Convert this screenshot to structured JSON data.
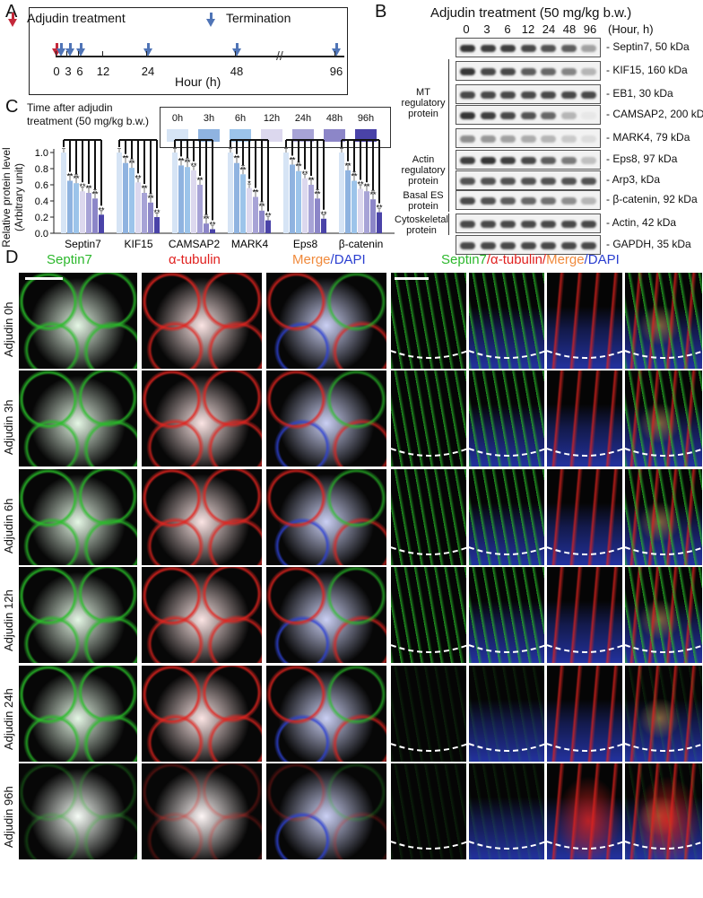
{
  "panel_labels": {
    "a": "A",
    "b": "B",
    "c": "C",
    "d": "D"
  },
  "panel_a": {
    "legend_treatment": "Adjudin treatment",
    "legend_termination": "Termination",
    "axis_label": "Hour (h)",
    "ticks": [
      "0",
      "3",
      "6",
      "12",
      "24",
      "48",
      "96"
    ],
    "treatment_color": "#c4283a",
    "termination_color": "#4f74b6"
  },
  "panel_b": {
    "title": "Adjudin treatment (50 mg/kg b.w.)",
    "lanes": [
      "0",
      "3",
      "6",
      "12",
      "24",
      "48",
      "96"
    ],
    "lane_unit": "(Hour, h)",
    "blots": [
      {
        "label": "Septin7, 50 kDa",
        "levels": [
          0.95,
          0.9,
          0.9,
          0.85,
          0.8,
          0.75,
          0.4
        ]
      },
      {
        "label": "KIF15, 160 kDa",
        "levels": [
          0.95,
          0.85,
          0.85,
          0.75,
          0.7,
          0.55,
          0.3
        ]
      },
      {
        "label": "EB1, 30 kDa",
        "levels": [
          0.85,
          0.85,
          0.85,
          0.85,
          0.85,
          0.85,
          0.85
        ]
      },
      {
        "label": "CAMSAP2, 200 kDa",
        "levels": [
          0.95,
          0.9,
          0.85,
          0.8,
          0.7,
          0.3,
          0.05
        ]
      },
      {
        "label": "MARK4, 79 kDa",
        "levels": [
          0.5,
          0.45,
          0.4,
          0.35,
          0.3,
          0.2,
          0.1
        ]
      },
      {
        "label": "Eps8, 97 kDa",
        "levels": [
          0.9,
          0.95,
          0.9,
          0.85,
          0.75,
          0.6,
          0.25
        ]
      },
      {
        "label": "Arp3,  kDa",
        "levels": [
          0.8,
          0.8,
          0.8,
          0.8,
          0.8,
          0.8,
          0.8
        ]
      },
      {
        "label": "β-catenin, 92 kDa",
        "levels": [
          0.85,
          0.8,
          0.75,
          0.7,
          0.65,
          0.5,
          0.3
        ]
      },
      {
        "label": "Actin, 42 kDa",
        "levels": [
          0.85,
          0.85,
          0.85,
          0.85,
          0.85,
          0.85,
          0.85
        ]
      },
      {
        "label": "GAPDH, 35 kDa",
        "levels": [
          0.85,
          0.85,
          0.85,
          0.85,
          0.85,
          0.85,
          0.85
        ]
      }
    ],
    "groups": {
      "mt": "MT regulatory protein",
      "actin": "Actin regulatory protein",
      "basal": "Basal ES protein",
      "cyto": "Cytoskeletal protein"
    }
  },
  "chart_data": {
    "type": "bar",
    "legend_title": "Time after adjudin treatment (50 mg/kg b.w.)",
    "ylabel": "Relative protein level (Arbitrary unit)",
    "ylim": [
      0,
      1.0
    ],
    "yticks": [
      "0.0",
      "0.2",
      "0.4",
      "0.6",
      "0.8",
      "1.0"
    ],
    "categories": [
      "Septin7",
      "KIF15",
      "CAMSAP2",
      "MARK4",
      "Eps8",
      "β-catenin"
    ],
    "series": [
      {
        "name": "0h",
        "color": "#d6e4f5",
        "values": [
          1.0,
          1.0,
          1.0,
          1.0,
          1.0,
          1.0
        ],
        "errors": [
          0.05,
          0.04,
          0.02,
          0.05,
          0.05,
          0.03
        ]
      },
      {
        "name": "3h",
        "color": "#8fb3e0",
        "values": [
          0.65,
          0.87,
          0.84,
          0.87,
          0.85,
          0.78
        ]
      },
      {
        "name": "6h",
        "color": "#9cc4ea",
        "values": [
          0.62,
          0.81,
          0.82,
          0.73,
          0.77,
          0.65
        ]
      },
      {
        "name": "12h",
        "color": "#dcd8ee",
        "values": [
          0.52,
          0.63,
          0.78,
          0.56,
          0.68,
          0.55
        ]
      },
      {
        "name": "24h",
        "color": "#a7a3d6",
        "values": [
          0.5,
          0.5,
          0.6,
          0.45,
          0.6,
          0.52
        ]
      },
      {
        "name": "48h",
        "color": "#8c86c8",
        "values": [
          0.43,
          0.38,
          0.12,
          0.28,
          0.43,
          0.42
        ]
      },
      {
        "name": "96h",
        "color": "#4a43a8",
        "values": [
          0.23,
          0.2,
          0.05,
          0.16,
          0.18,
          0.26
        ]
      }
    ],
    "significance": "**",
    "significance_single": "*"
  },
  "panel_d": {
    "col_heads": {
      "septin7": "Septin7",
      "tubulin": "α-tubulin",
      "merge_a": "Merge",
      "merge_b": "/DAPI",
      "right_a": "Septin7",
      "right_b": "/α-tubulin/",
      "right_c": "Merge",
      "right_d": "/DAPI"
    },
    "rows": [
      "Adjudin 0h",
      "Adjudin 3h",
      "Adjudin 6h",
      "Adjudin 12h",
      "Adjudin 24h",
      "Adjudin 96h"
    ],
    "colors": {
      "green": "#2db82d",
      "red": "#e0211f",
      "orange": "#f08a3c",
      "blue": "#2b3fd0"
    }
  }
}
